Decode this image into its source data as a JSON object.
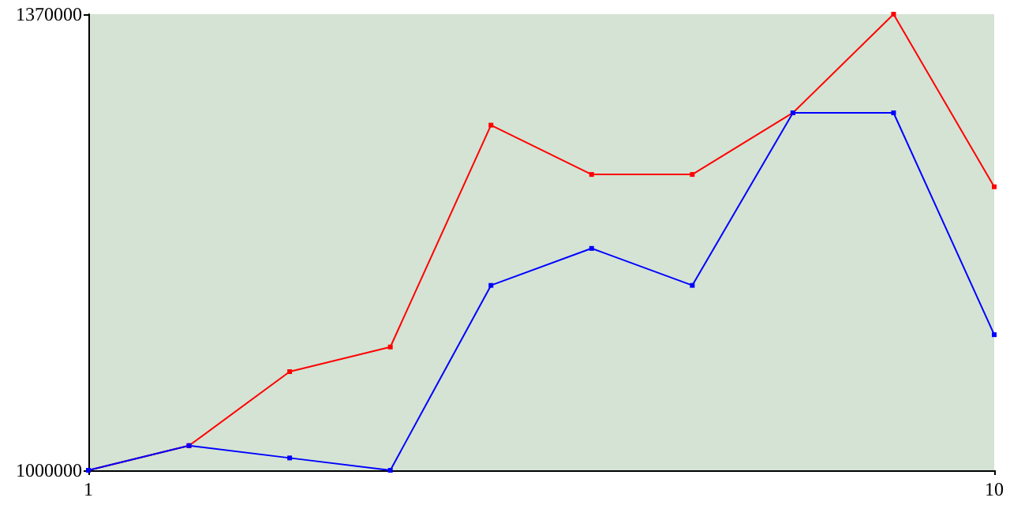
{
  "chart_data": {
    "type": "line",
    "x": [
      1,
      2,
      3,
      4,
      5,
      6,
      7,
      8,
      9,
      10
    ],
    "xlim": [
      1,
      10
    ],
    "xticks": [
      1,
      10
    ],
    "ylim": [
      1000000,
      1370000
    ],
    "yticks": [
      1000000,
      1370000
    ],
    "grid": false,
    "marker": "square",
    "line_style": "solid",
    "series": [
      {
        "color": "#ff0000",
        "values": [
          1000000,
          1020000,
          1080000,
          1100000,
          1280000,
          1240000,
          1240000,
          1290000,
          1370000,
          1230000
        ]
      },
      {
        "color": "#0000ff",
        "values": [
          1000000,
          1020000,
          1010000,
          1000000,
          1150000,
          1180000,
          1150000,
          1290000,
          1290000,
          1110000
        ]
      }
    ]
  }
}
